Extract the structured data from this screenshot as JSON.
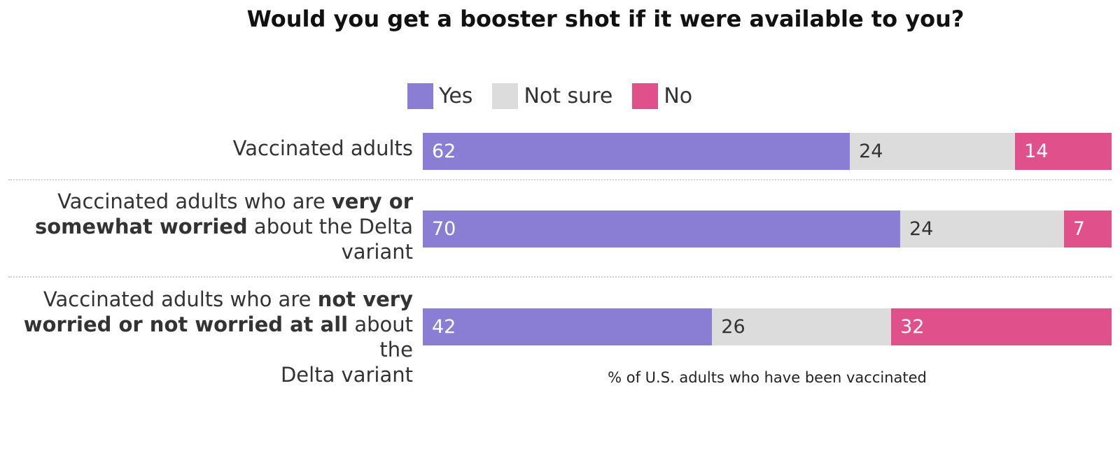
{
  "chart_data": {
    "type": "bar",
    "orientation": "horizontal",
    "stacked": true,
    "title": "Would you get a booster shot if it were available to you?",
    "xlabel": "% of U.S. adults who have been vaccinated",
    "xlim": [
      0,
      100
    ],
    "grid": false,
    "legend_placement": "top",
    "categories": [
      [
        {
          "text": "Vaccinated adults",
          "bold": false
        }
      ],
      [
        {
          "text": "Vaccinated adults who are ",
          "bold": false
        },
        {
          "text": "very or somewhat worried",
          "bold": true
        },
        {
          "text": " about the Delta variant",
          "bold": false
        }
      ],
      [
        {
          "text": "Vaccinated adults who are ",
          "bold": false
        },
        {
          "text": "not very worried or not worried at all",
          "bold": true
        },
        {
          "text": " about the Delta variant",
          "bold": false
        }
      ]
    ],
    "series": [
      {
        "name": "Yes",
        "color": "#8a7dd4",
        "label_color": "#ffffff",
        "values": [
          62,
          70,
          42
        ]
      },
      {
        "name": "Not sure",
        "color": "#dcdcdc",
        "label_color": "#333333",
        "values": [
          24,
          24,
          26
        ]
      },
      {
        "name": "No",
        "color": "#e0508a",
        "label_color": "#ffffff",
        "values": [
          14,
          7,
          32
        ]
      }
    ]
  }
}
